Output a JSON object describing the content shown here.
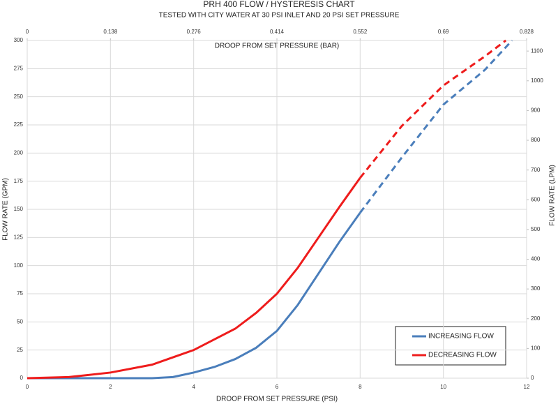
{
  "chart_data": {
    "type": "line",
    "title": "PRH 400 FLOW / HYSTERESIS CHART",
    "subtitle": "TESTED WITH CITY WATER AT 30 PSI INLET AND 20 PSI SET PRESSURE",
    "x_label": "DROOP FROM SET PRESSURE (PSI)",
    "x2_label": "DROOP FROM SET PRESSURE (BAR)",
    "y_label": "FLOW RATE (GPM)",
    "y2_label": "FLOW RATE (LPM)",
    "xlim": [
      0,
      12
    ],
    "xticks": [
      0,
      2,
      4,
      6,
      8,
      10,
      12
    ],
    "x2lim": [
      0,
      0.828
    ],
    "x2ticks": [
      0,
      0.138,
      0.276,
      0.414,
      0.552,
      0.69,
      0.828
    ],
    "ylim": [
      0,
      300
    ],
    "yticks": [
      0,
      25,
      50,
      75,
      100,
      125,
      150,
      175,
      200,
      225,
      250,
      275,
      300
    ],
    "y2lim": [
      0,
      1135.6
    ],
    "y2ticks": [
      0,
      100,
      200,
      300,
      400,
      500,
      600,
      700,
      800,
      900,
      1000,
      1100
    ],
    "grid": true,
    "dashed_from_x": 8,
    "series": [
      {
        "name": "INCREASING FLOW",
        "color": "#4a7ebb",
        "x": [
          0,
          1,
          2,
          3,
          3.5,
          4,
          4.5,
          5,
          5.5,
          6,
          6.5,
          7,
          7.5,
          8,
          9,
          10,
          11,
          11.65
        ],
        "values": [
          0,
          0,
          0,
          0,
          1,
          5,
          10,
          17,
          27,
          42,
          65,
          93,
          121,
          147,
          196,
          243,
          274,
          300
        ]
      },
      {
        "name": "DECREASING FLOW",
        "color": "#ee1c1c",
        "x": [
          0,
          1,
          2,
          3,
          4,
          5,
          5.5,
          6,
          6.5,
          7,
          7.5,
          8,
          9,
          10,
          11,
          11.5
        ],
        "values": [
          0,
          1,
          5,
          12,
          25,
          44,
          58,
          75,
          98,
          125,
          152,
          178,
          224,
          260,
          286,
          300
        ]
      }
    ]
  }
}
